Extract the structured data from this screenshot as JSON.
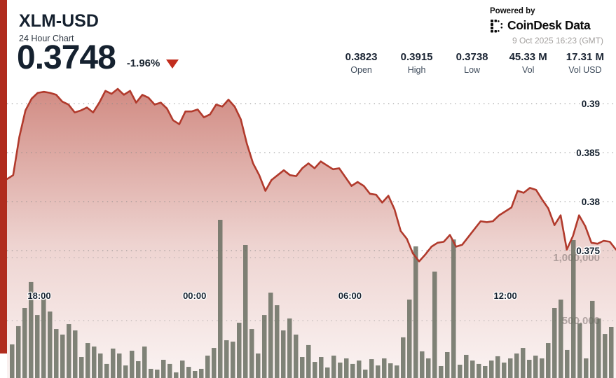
{
  "header": {
    "symbol": "XLM-USD",
    "subtitle": "24 Hour Chart",
    "price": "0.3748",
    "change": "-1.96%",
    "change_direction": "down",
    "powered_by": "Powered by",
    "brand": "CoinDesk Data",
    "timestamp": "9 Oct 2025 16:23 (GMT)"
  },
  "stats": [
    {
      "value": "0.3823",
      "label": "Open"
    },
    {
      "value": "0.3915",
      "label": "High"
    },
    {
      "value": "0.3738",
      "label": "Low"
    },
    {
      "value": "45.33 M",
      "label": "Vol"
    },
    {
      "value": "17.31 M",
      "label": "Vol USD"
    }
  ],
  "colors": {
    "accent_red": "#b02c1e",
    "line_red": "#b13a2c",
    "triangle_red": "#c22d1d",
    "navy_text": "#15212f",
    "bar_gray": "#646a5d",
    "grid_gray": "#8a8a8a",
    "muted_label": "#7a706d"
  },
  "chart_data": {
    "type": "area",
    "title": "XLM-USD 24 Hour Chart",
    "x_tick_labels": [
      "18:00",
      "00:00",
      "06:00",
      "12:00"
    ],
    "price_axis_ticks": [
      {
        "label": "0.39",
        "value": 0.39
      },
      {
        "label": "0.385",
        "value": 0.385
      },
      {
        "label": "0.38",
        "value": 0.38
      },
      {
        "label": "0.375",
        "value": 0.375
      }
    ],
    "volume_axis_ticks": [
      {
        "label": "1,000,000",
        "value": 1000000
      },
      {
        "label": "500,000",
        "value": 500000
      }
    ],
    "summary": {
      "open": 0.3823,
      "high": 0.3915,
      "low": 0.3738,
      "close": 0.3748,
      "vol": "45.33 M",
      "vol_usd": "17.31 M"
    },
    "price_series": [
      0.3823,
      0.3827,
      0.3866,
      0.3893,
      0.3905,
      0.3911,
      0.3912,
      0.3911,
      0.3909,
      0.3902,
      0.3899,
      0.3891,
      0.3893,
      0.3896,
      0.3891,
      0.3901,
      0.3913,
      0.391,
      0.3915,
      0.3909,
      0.3913,
      0.3901,
      0.3909,
      0.3906,
      0.3899,
      0.3901,
      0.3895,
      0.3883,
      0.3879,
      0.3892,
      0.3892,
      0.3894,
      0.3886,
      0.3889,
      0.3899,
      0.3897,
      0.3904,
      0.3897,
      0.3884,
      0.3859,
      0.3839,
      0.3827,
      0.3811,
      0.3822,
      0.3827,
      0.3832,
      0.3827,
      0.3826,
      0.3834,
      0.3839,
      0.3834,
      0.3841,
      0.3837,
      0.3833,
      0.3834,
      0.3825,
      0.3816,
      0.382,
      0.3816,
      0.3808,
      0.3807,
      0.3799,
      0.3806,
      0.3792,
      0.377,
      0.3762,
      0.3747,
      0.3739,
      0.3746,
      0.3754,
      0.3758,
      0.3759,
      0.3766,
      0.3754,
      0.3756,
      0.3764,
      0.3772,
      0.378,
      0.3779,
      0.378,
      0.3786,
      0.379,
      0.3794,
      0.3811,
      0.3809,
      0.3814,
      0.3812,
      0.3802,
      0.3793,
      0.3776,
      0.3786,
      0.3751,
      0.3765,
      0.3786,
      0.3775,
      0.3758,
      0.3757,
      0.376,
      0.3759,
      0.3751
    ],
    "volume_series": [
      311000,
      456000,
      600000,
      806000,
      544000,
      689000,
      572000,
      433000,
      389000,
      472000,
      422000,
      211000,
      322000,
      294000,
      239000,
      156000,
      278000,
      239000,
      144000,
      261000,
      178000,
      294000,
      117000,
      111000,
      189000,
      156000,
      89000,
      183000,
      133000,
      100000,
      117000,
      222000,
      283000,
      1300000,
      344000,
      333000,
      483000,
      1100000,
      433000,
      239000,
      544000,
      722000,
      622000,
      422000,
      517000,
      389000,
      211000,
      306000,
      172000,
      211000,
      128000,
      222000,
      167000,
      200000,
      156000,
      183000,
      111000,
      194000,
      144000,
      200000,
      161000,
      144000,
      367000,
      667000,
      1089000,
      256000,
      200000,
      889000,
      139000,
      250000,
      1144000,
      150000,
      228000,
      183000,
      156000,
      139000,
      183000,
      217000,
      167000,
      200000,
      239000,
      283000,
      189000,
      222000,
      200000,
      322000,
      600000,
      667000,
      267000,
      1139000,
      478000,
      200000,
      656000,
      517000,
      394000,
      450000
    ]
  }
}
